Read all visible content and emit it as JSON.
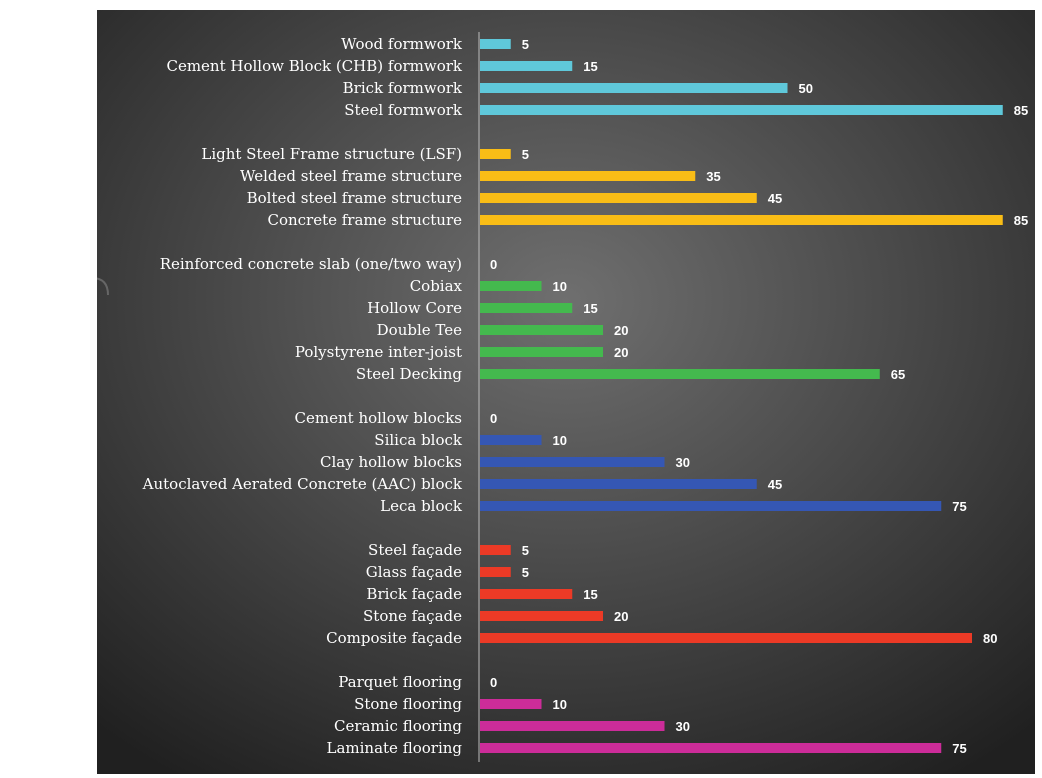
{
  "chart_data": {
    "type": "bar",
    "orientation": "horizontal",
    "title": "",
    "xlabel": "",
    "ylabel": "",
    "xlim": [
      0,
      85
    ],
    "grid": false,
    "legend": "none",
    "background_colors": [
      "#6f6f6f",
      "#202020"
    ],
    "label_color": "#ffffff",
    "groups": [
      {
        "color": "#5fc8da",
        "items": [
          {
            "label": "Wood formwork",
            "value": 5
          },
          {
            "label": "Cement Hollow Block (CHB) formwork",
            "value": 15
          },
          {
            "label": "Brick formwork",
            "value": 50
          },
          {
            "label": "Steel formwork",
            "value": 85
          }
        ]
      },
      {
        "color": "#f9bd16",
        "items": [
          {
            "label": "Light Steel Frame structure (LSF)",
            "value": 5
          },
          {
            "label": "Welded steel frame structure",
            "value": 35
          },
          {
            "label": "Bolted steel frame structure",
            "value": 45
          },
          {
            "label": "Concrete frame structure",
            "value": 85
          }
        ]
      },
      {
        "color": "#44b94e",
        "items": [
          {
            "label": "Reinforced concrete slab (one/two way)",
            "value": 0
          },
          {
            "label": "Cobiax",
            "value": 10
          },
          {
            "label": "Hollow Core",
            "value": 15
          },
          {
            "label": "Double Tee",
            "value": 20
          },
          {
            "label": "Polystyrene inter-joist",
            "value": 20
          },
          {
            "label": "Steel Decking",
            "value": 65
          }
        ]
      },
      {
        "color": "#3557b4",
        "items": [
          {
            "label": "Cement hollow blocks",
            "value": 0
          },
          {
            "label": "Silica block",
            "value": 10
          },
          {
            "label": "Clay hollow blocks",
            "value": 30
          },
          {
            "label": "Autoclaved Aerated Concrete (AAC) block",
            "value": 45
          },
          {
            "label": "Leca block",
            "value": 75
          }
        ]
      },
      {
        "color": "#ec3a26",
        "items": [
          {
            "label": "Steel façade",
            "value": 5
          },
          {
            "label": "Glass façade",
            "value": 5
          },
          {
            "label": "Brick façade",
            "value": 15
          },
          {
            "label": "Stone façade",
            "value": 20
          },
          {
            "label": "Composite façade",
            "value": 80
          }
        ]
      },
      {
        "color": "#cc2c99",
        "items": [
          {
            "label": "Parquet flooring",
            "value": 0
          },
          {
            "label": "Stone flooring",
            "value": 10
          },
          {
            "label": "Ceramic flooring",
            "value": 30
          },
          {
            "label": "Laminate flooring",
            "value": 75
          }
        ]
      }
    ]
  }
}
